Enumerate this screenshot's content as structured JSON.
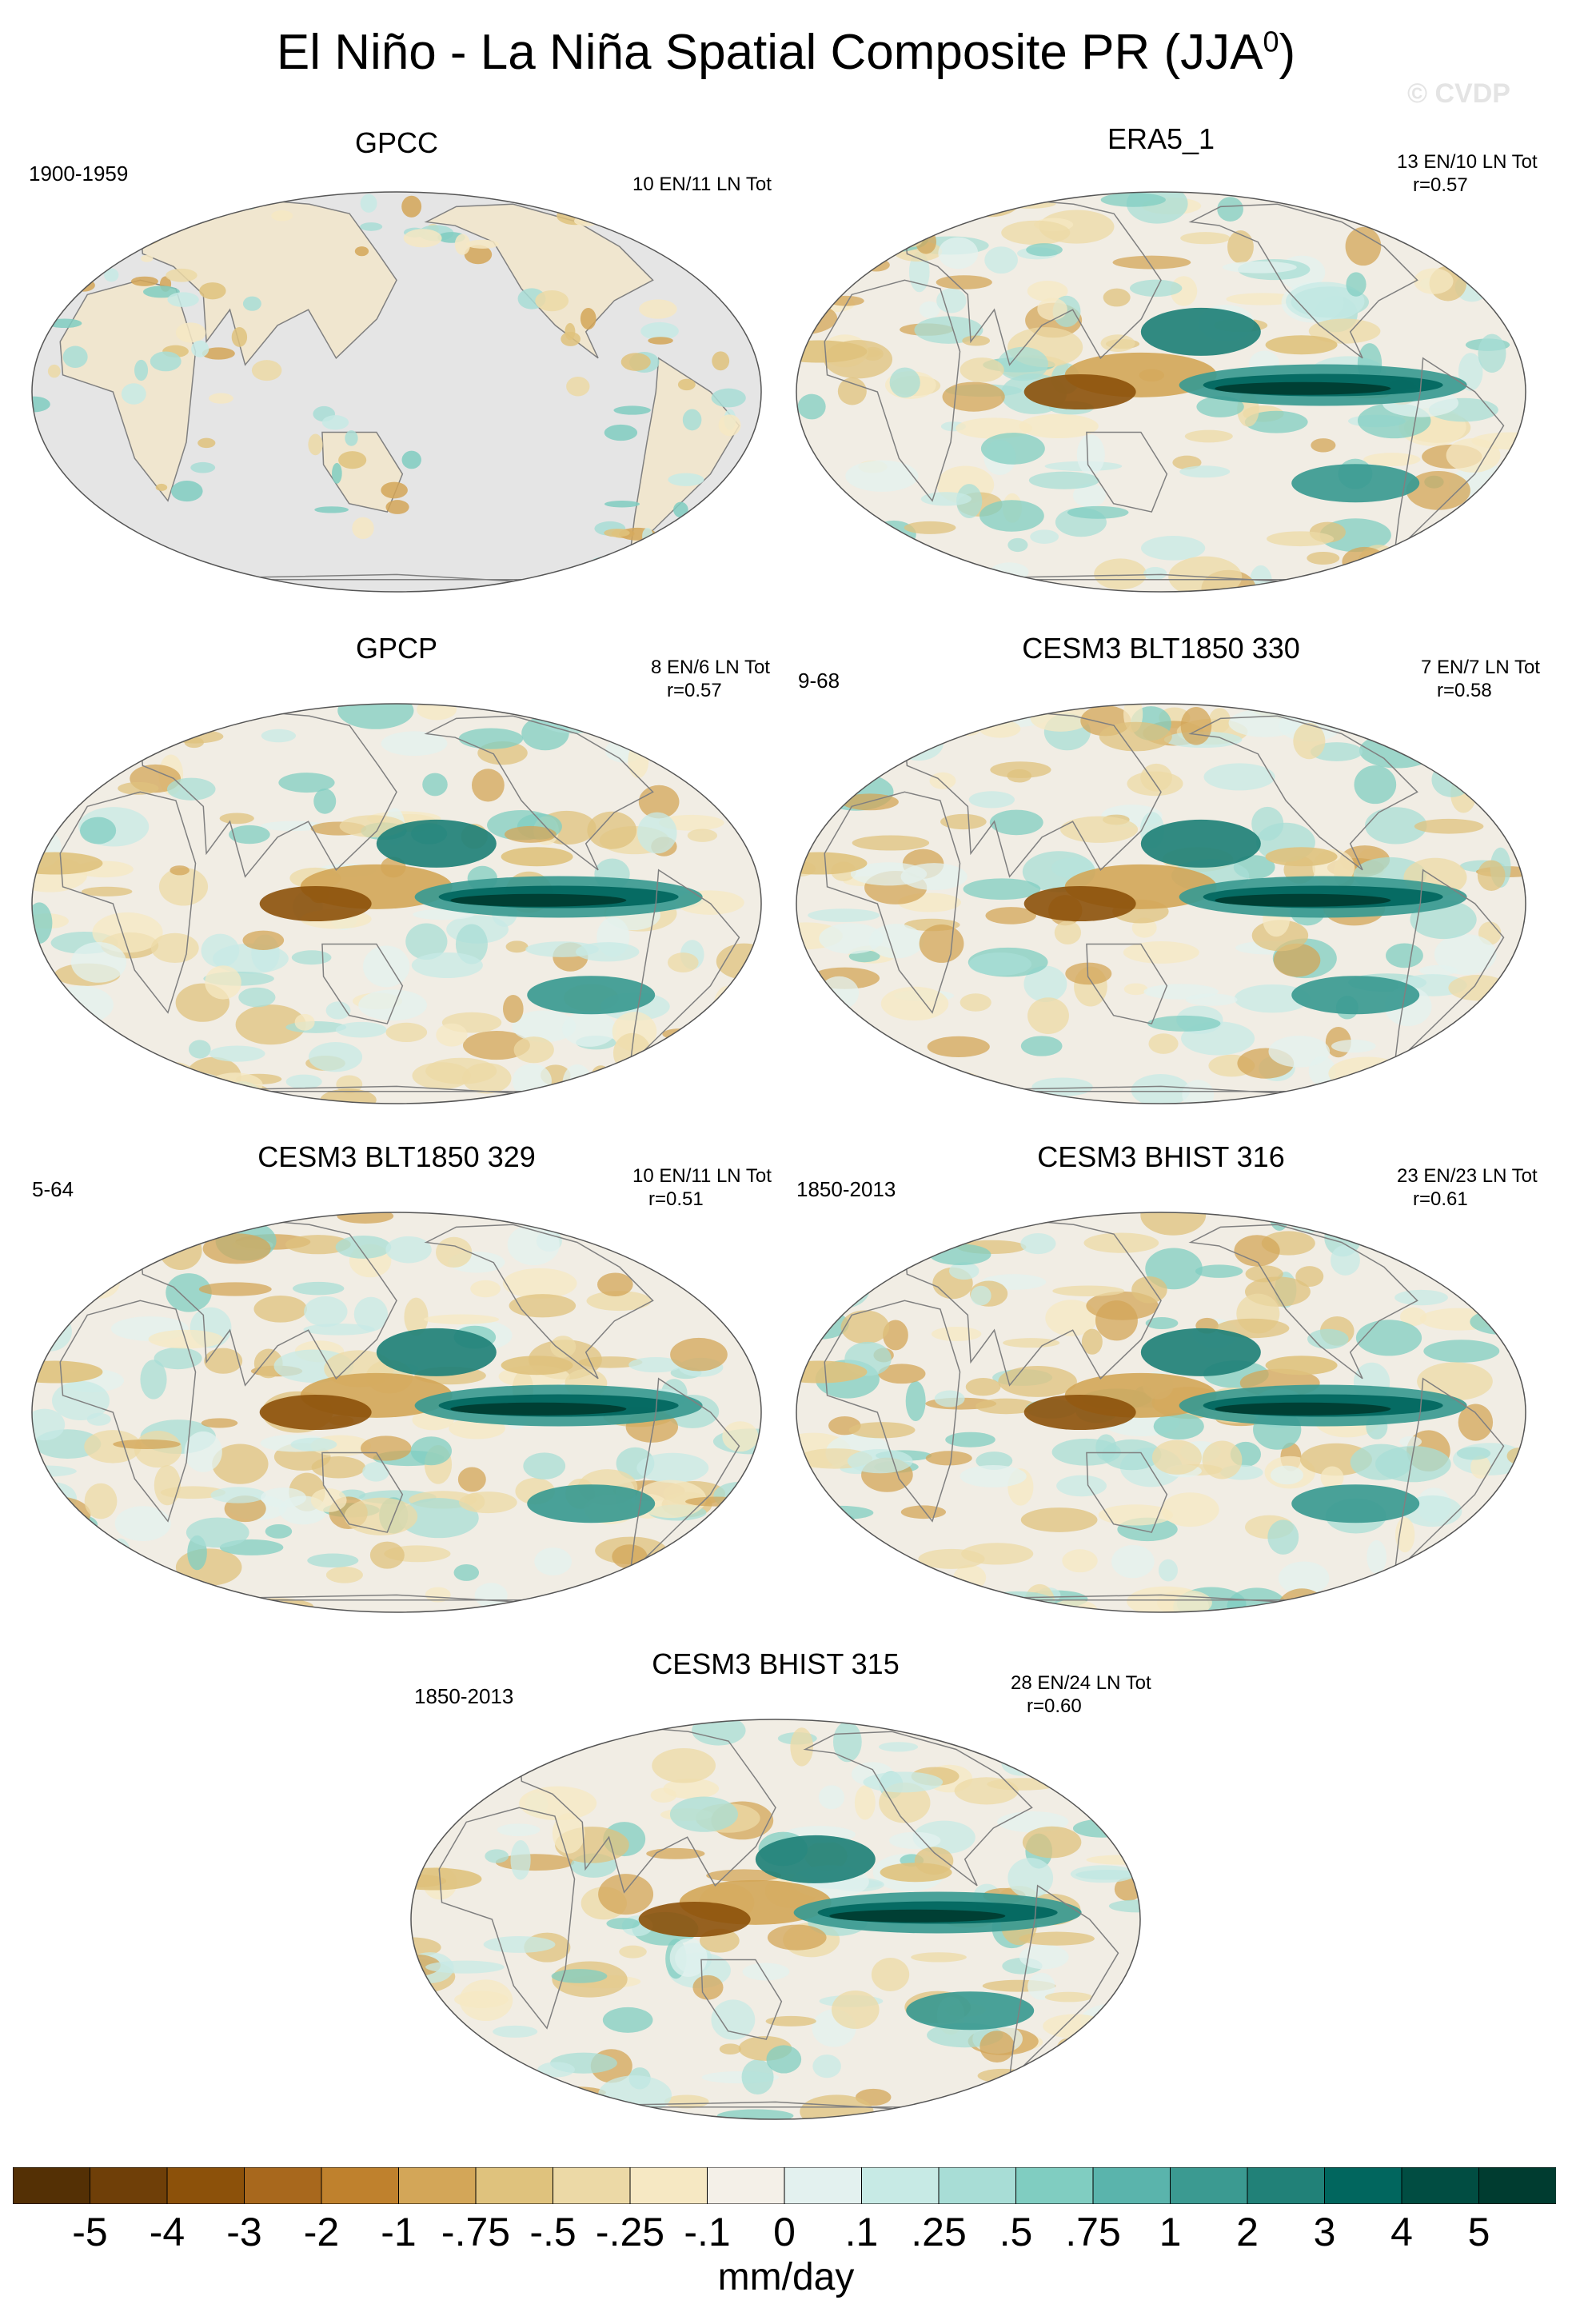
{
  "title_main": "El Niño - La Niña Spatial Composite PR (JJA",
  "title_sup": "0",
  "title_end": ")",
  "copyright": "© CVDP",
  "colors": {
    "scale": [
      "#543005",
      "#6f3f08",
      "#8c510a",
      "#a8681d",
      "#bf812d",
      "#d3a658",
      "#dfc27d",
      "#ecd9a6",
      "#f6e8c3",
      "#f4f0e8",
      "#e3f1ef",
      "#c7eae5",
      "#a8ddd6",
      "#80cdc1",
      "#5ab4ac",
      "#3b9a91",
      "#218178",
      "#01665e",
      "#014d42",
      "#003c30"
    ],
    "ocean_missing": "#e5e5e5",
    "coast": "#808080"
  },
  "panels": [
    {
      "title": "GPCC",
      "period": "1900-1959",
      "stats": "10 EN/11 LN Tot",
      "r": "",
      "land_only": true,
      "seed": 3
    },
    {
      "title": "ERA5_1",
      "period": "",
      "stats": "13 EN/10 LN Tot",
      "r": "r=0.57",
      "land_only": false,
      "seed": 7
    },
    {
      "title": "GPCP",
      "period": "",
      "stats": "8 EN/6 LN Tot",
      "r": "r=0.57",
      "land_only": false,
      "seed": 11
    },
    {
      "title": "CESM3 BLT1850 330",
      "period": "9-68",
      "stats": "7 EN/7 LN Tot",
      "r": "r=0.58",
      "land_only": false,
      "seed": 17
    },
    {
      "title": "CESM3 BLT1850 329",
      "period": "5-64",
      "stats": "10 EN/11 LN Tot",
      "r": "r=0.51",
      "land_only": false,
      "seed": 23
    },
    {
      "title": "CESM3 BHIST 316",
      "period": "1850-2013",
      "stats": "23 EN/23 LN Tot",
      "r": "r=0.61",
      "land_only": false,
      "seed": 29
    },
    {
      "title": "CESM3 BHIST 315",
      "period": "1850-2013",
      "stats": "28 EN/24 LN Tot",
      "r": "r=0.60",
      "land_only": false,
      "seed": 31
    }
  ],
  "colorbar": {
    "labels": [
      "-5",
      "-4",
      "-3",
      "-2",
      "-1",
      "-.75",
      "-.5",
      "-.25",
      "-.1",
      "0",
      ".1",
      ".25",
      ".5",
      ".75",
      "1",
      "2",
      "3",
      "4",
      "5"
    ],
    "unit": "mm/day"
  }
}
